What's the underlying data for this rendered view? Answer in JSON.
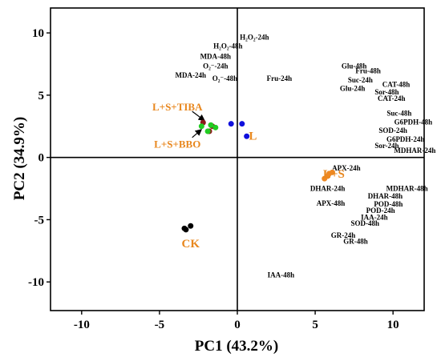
{
  "chart_data": {
    "type": "scatter",
    "xlabel": "PC1 (43.2%)",
    "ylabel": "PC2 (34.9%)",
    "xlim": [
      -12,
      12
    ],
    "ylim": [
      -12.3,
      12
    ],
    "xticks": [
      -10,
      -5,
      0,
      5,
      10
    ],
    "yticks": [
      -10,
      -5,
      0,
      5,
      10
    ],
    "reference_lines": {
      "x": 0,
      "y": 0
    },
    "groups": [
      {
        "name": "CK",
        "color": "#000000",
        "points": [
          [
            -3.4,
            -5.7
          ],
          [
            -3.3,
            -5.8
          ],
          [
            -3.0,
            -5.5
          ]
        ]
      },
      {
        "name": "L",
        "color": "#1010dd",
        "points": [
          [
            -0.4,
            2.7
          ],
          [
            0.3,
            2.7
          ],
          [
            0.6,
            1.7
          ]
        ]
      },
      {
        "name": "L+S+TIBA",
        "color": "#8b1a1a",
        "points": [
          [
            -2.2,
            2.8
          ],
          [
            -1.6,
            2.5
          ],
          [
            -1.8,
            2.1
          ]
        ]
      },
      {
        "name": "L+S+BBO",
        "color": "#22cc22",
        "points": [
          [
            -2.3,
            2.5
          ],
          [
            -1.9,
            2.1
          ],
          [
            -1.4,
            2.4
          ],
          [
            -1.7,
            2.6
          ]
        ]
      },
      {
        "name": "L+S",
        "color": "#ee8822",
        "points": [
          [
            5.6,
            -1.7
          ],
          [
            5.8,
            -1.5
          ],
          [
            5.9,
            -1.3
          ],
          [
            6.1,
            -1.2
          ]
        ]
      }
    ],
    "group_labels": [
      {
        "text": "CK",
        "x": -3.0,
        "y": -6.9
      },
      {
        "text": "L",
        "x": 1.0,
        "y": 1.75
      },
      {
        "text": "L+S+TIBA",
        "x": -3.85,
        "y": 4.1
      },
      {
        "text": "L+S+BBO",
        "x": -3.85,
        "y": 1.1
      },
      {
        "text": "L+S",
        "x": 6.2,
        "y": -1.3
      }
    ],
    "arrows": [
      {
        "from": [
          -2.9,
          3.7
        ],
        "to": [
          -2.1,
          2.95
        ]
      },
      {
        "from": [
          -2.9,
          1.6
        ],
        "to": [
          -2.3,
          2.25
        ]
      }
    ],
    "variables": [
      {
        "text": "H₂O₂-24h",
        "x": 1.1,
        "y": 9.65
      },
      {
        "text": "H₂O₂-48h",
        "x": -0.6,
        "y": 8.95
      },
      {
        "text": "MDA-48h",
        "x": -1.4,
        "y": 8.1
      },
      {
        "text": "O₂⁻-24h",
        "x": -1.4,
        "y": 7.35
      },
      {
        "text": "MDA-24h",
        "x": -3.0,
        "y": 6.6
      },
      {
        "text": "O₂⁻-48h",
        "x": -0.8,
        "y": 6.35
      },
      {
        "text": "Fru-24h",
        "x": 2.7,
        "y": 6.35
      },
      {
        "text": "Glu-48h",
        "x": 7.5,
        "y": 7.35
      },
      {
        "text": "Fru-48h",
        "x": 8.4,
        "y": 6.95
      },
      {
        "text": "Suc-24h",
        "x": 7.9,
        "y": 6.2
      },
      {
        "text": "CAT-48h",
        "x": 10.2,
        "y": 5.85
      },
      {
        "text": "Glu-24h",
        "x": 7.4,
        "y": 5.55
      },
      {
        "text": "Sor-48h",
        "x": 9.6,
        "y": 5.25
      },
      {
        "text": "CAT-24h",
        "x": 9.9,
        "y": 4.75
      },
      {
        "text": "Suc-48h",
        "x": 10.4,
        "y": 3.55
      },
      {
        "text": "G6PDH-48h",
        "x": 11.3,
        "y": 2.85
      },
      {
        "text": "SOD-24h",
        "x": 10.0,
        "y": 2.15
      },
      {
        "text": "G6PDH-24h",
        "x": 10.8,
        "y": 1.45
      },
      {
        "text": "Sor-24h",
        "x": 9.6,
        "y": 0.95
      },
      {
        "text": "MDHAR-24h",
        "x": 11.4,
        "y": 0.55
      },
      {
        "text": "APX-24h",
        "x": 7.0,
        "y": -0.85
      },
      {
        "text": "MDHAR-48h",
        "x": 10.9,
        "y": -2.5
      },
      {
        "text": "DHAR-24h",
        "x": 5.8,
        "y": -2.5
      },
      {
        "text": "DHAR-48h",
        "x": 9.5,
        "y": -3.1
      },
      {
        "text": "APX-48h",
        "x": 6.0,
        "y": -3.7
      },
      {
        "text": "POD-48h",
        "x": 9.7,
        "y": -3.75
      },
      {
        "text": "POD-24h",
        "x": 9.2,
        "y": -4.25
      },
      {
        "text": "IAA-24h",
        "x": 8.8,
        "y": -4.8
      },
      {
        "text": "SOD-48h",
        "x": 8.2,
        "y": -5.3
      },
      {
        "text": "GR-24h",
        "x": 6.8,
        "y": -6.25
      },
      {
        "text": "GR-48h",
        "x": 7.6,
        "y": -6.75
      },
      {
        "text": "IAA-48h",
        "x": 2.8,
        "y": -9.45
      }
    ]
  }
}
